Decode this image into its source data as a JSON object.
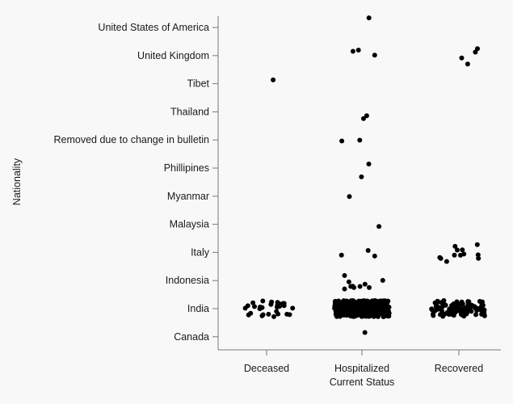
{
  "chart_data": {
    "type": "scatter",
    "xlabel": "Current Status",
    "ylabel": "Nationality",
    "categories": [
      "Deceased",
      "Hospitalized",
      "Recovered"
    ],
    "y_categories": [
      "United States of America",
      "United Kingdom",
      "Tibet",
      "Thailand",
      "Removed due to change in bulletin",
      "Phillipines",
      "Myanmar",
      "Malaysia",
      "Italy",
      "Indonesia",
      "India",
      "Canada"
    ],
    "grid": false,
    "legend": "none",
    "point_color": "#000000",
    "series": [
      {
        "points": [
          {
            "x": "Deceased",
            "y": "Tibet",
            "count": 1
          },
          {
            "x": "Deceased",
            "y": "India",
            "count": 30
          },
          {
            "x": "Hospitalized",
            "y": "United States of America",
            "count": 1
          },
          {
            "x": "Hospitalized",
            "y": "United Kingdom",
            "count": 3
          },
          {
            "x": "Hospitalized",
            "y": "Thailand",
            "count": 2
          },
          {
            "x": "Hospitalized",
            "y": "Removed due to change in bulletin",
            "count": 2
          },
          {
            "x": "Hospitalized",
            "y": "Phillipines",
            "count": 2
          },
          {
            "x": "Hospitalized",
            "y": "Myanmar",
            "count": 1
          },
          {
            "x": "Hospitalized",
            "y": "Malaysia",
            "count": 1
          },
          {
            "x": "Hospitalized",
            "y": "Italy",
            "count": 3
          },
          {
            "x": "Hospitalized",
            "y": "Indonesia",
            "count": 10
          },
          {
            "x": "Hospitalized",
            "y": "India",
            "count": 400
          },
          {
            "x": "Hospitalized",
            "y": "Canada",
            "count": 1
          },
          {
            "x": "Recovered",
            "y": "United Kingdom",
            "count": 4
          },
          {
            "x": "Recovered",
            "y": "Italy",
            "count": 12
          },
          {
            "x": "Recovered",
            "y": "India",
            "count": 90
          }
        ]
      }
    ]
  }
}
